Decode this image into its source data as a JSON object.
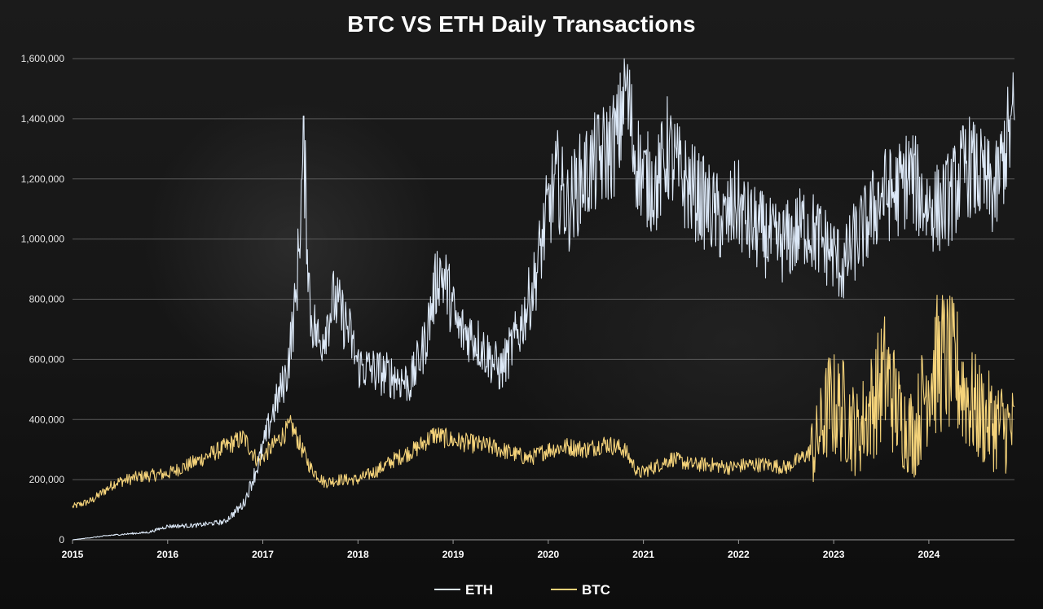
{
  "chart_data": {
    "type": "line",
    "title": "BTC VS ETH Daily Transactions",
    "ylim": [
      0,
      1600000
    ],
    "y_ticks": [
      "0",
      "200,000",
      "400,000",
      "600,000",
      "800,000",
      "1,000,000",
      "1,200,000",
      "1,400,000",
      "1,600,000"
    ],
    "xlim": [
      2015.0,
      2024.9
    ],
    "x_ticks": [
      "2015",
      "2016",
      "2017",
      "2018",
      "2019",
      "2020",
      "2021",
      "2022",
      "2023",
      "2024"
    ],
    "grid": true,
    "legend_position": "bottom",
    "series": [
      {
        "name": "ETH",
        "color": "#dce8f7",
        "x": [
          2015.0,
          2015.4,
          2015.8,
          2016.0,
          2016.3,
          2016.6,
          2016.8,
          2016.95,
          2017.1,
          2017.25,
          2017.35,
          2017.43,
          2017.5,
          2017.6,
          2017.75,
          2017.9,
          2018.0,
          2018.2,
          2018.4,
          2018.55,
          2018.7,
          2018.85,
          2018.93,
          2019.05,
          2019.2,
          2019.35,
          2019.5,
          2019.7,
          2019.85,
          2020.0,
          2020.1,
          2020.2,
          2020.35,
          2020.5,
          2020.65,
          2020.75,
          2020.8,
          2020.9,
          2021.0,
          2021.15,
          2021.25,
          2021.4,
          2021.55,
          2021.7,
          2021.85,
          2021.98,
          2022.1,
          2022.25,
          2022.4,
          2022.55,
          2022.7,
          2022.85,
          2023.0,
          2023.1,
          2023.2,
          2023.35,
          2023.5,
          2023.65,
          2023.8,
          2023.95,
          2024.1,
          2024.25,
          2024.4,
          2024.55,
          2024.7,
          2024.8,
          2024.9
        ],
        "y": [
          0,
          15000,
          25000,
          45000,
          48000,
          60000,
          120000,
          250000,
          420000,
          550000,
          800000,
          1300000,
          750000,
          650000,
          800000,
          700000,
          580000,
          560000,
          540000,
          520000,
          650000,
          900000,
          850000,
          700000,
          680000,
          620000,
          560000,
          700000,
          850000,
          1100000,
          1200000,
          1100000,
          1200000,
          1250000,
          1300000,
          1350000,
          1550000,
          1300000,
          1200000,
          1180000,
          1300000,
          1200000,
          1150000,
          1100000,
          1050000,
          1120000,
          1050000,
          1020000,
          980000,
          1000000,
          1050000,
          1000000,
          950000,
          900000,
          980000,
          1050000,
          1150000,
          1150000,
          1220000,
          1120000,
          1100000,
          1150000,
          1250000,
          1200000,
          1150000,
          1300000,
          1400000
        ]
      },
      {
        "name": "BTC",
        "color": "#f5d37a",
        "x": [
          2015.0,
          2015.2,
          2015.45,
          2015.7,
          2016.0,
          2016.3,
          2016.55,
          2016.8,
          2016.95,
          2017.1,
          2017.3,
          2017.5,
          2017.65,
          2017.8,
          2018.0,
          2018.2,
          2018.4,
          2018.6,
          2018.8,
          2019.0,
          2019.2,
          2019.4,
          2019.6,
          2019.8,
          2020.0,
          2020.2,
          2020.4,
          2020.6,
          2020.8,
          2020.95,
          2021.1,
          2021.3,
          2021.5,
          2021.7,
          2021.9,
          2022.1,
          2022.3,
          2022.5,
          2022.65,
          2022.8,
          2022.95,
          2023.1,
          2023.25,
          2023.4,
          2023.55,
          2023.7,
          2023.85,
          2024.0,
          2024.15,
          2024.3,
          2024.45,
          2024.6,
          2024.75,
          2024.9
        ],
        "y": [
          110000,
          130000,
          190000,
          210000,
          220000,
          260000,
          300000,
          340000,
          260000,
          310000,
          380000,
          240000,
          190000,
          200000,
          200000,
          230000,
          270000,
          300000,
          350000,
          330000,
          320000,
          310000,
          290000,
          270000,
          300000,
          310000,
          300000,
          320000,
          300000,
          220000,
          240000,
          270000,
          250000,
          250000,
          240000,
          250000,
          250000,
          240000,
          270000,
          300000,
          450000,
          430000,
          350000,
          450000,
          550000,
          400000,
          350000,
          550000,
          600000,
          550000,
          450000,
          400000,
          380000,
          360000
        ]
      }
    ]
  }
}
